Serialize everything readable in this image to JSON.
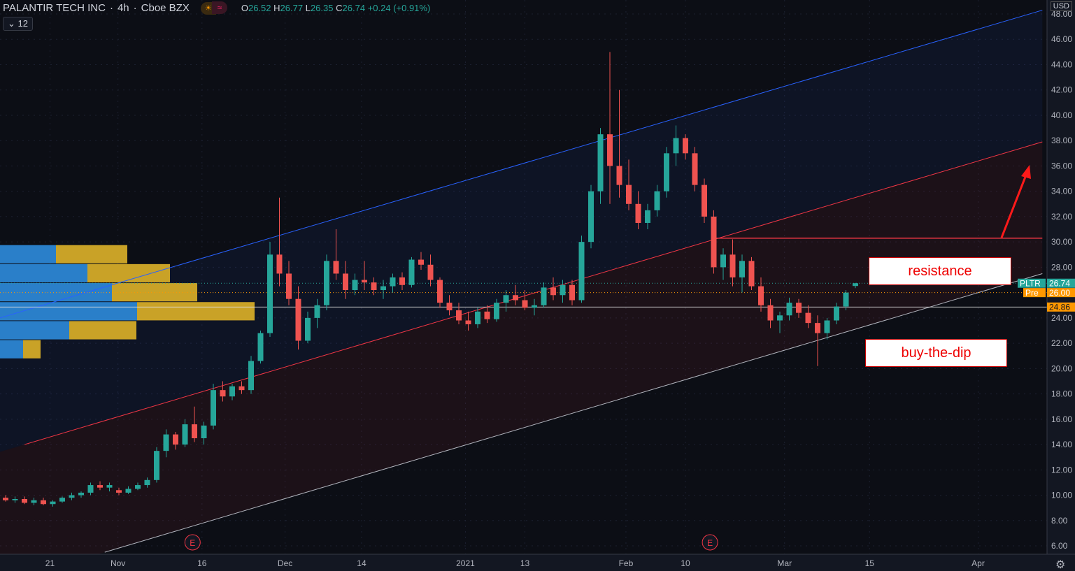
{
  "header": {
    "title": "PALANTIR TECH INC",
    "interval": "4h",
    "exchange": "Cboe BZX",
    "open_label": "O",
    "open": "26.52",
    "high_label": "H",
    "high": "26.77",
    "low_label": "L",
    "low": "26.35",
    "close_label": "C",
    "close": "26.74",
    "change": "+0.24 (+0.91%)",
    "collapse_count": "12",
    "currency": "USD"
  },
  "annotations": {
    "resistance": "resistance",
    "buy_the_dip": "buy-the-dip",
    "earnings_marker": "E"
  },
  "colors": {
    "up": "#26a69a",
    "down": "#ef5350",
    "bg": "#131722",
    "channel_top": "#2962ff",
    "channel_mid": "#f23645",
    "channel_bottom": "#b2b5be",
    "pre": "#ff9800"
  },
  "price_labels": {
    "symbol": "PLTR",
    "last": "26.74",
    "pre_label": "Pre",
    "pre": "26.00",
    "line": "24.86"
  },
  "chart_data": {
    "type": "candlestick",
    "title": "PALANTIR TECH INC · 4h · Cboe BZX",
    "ylim": [
      5,
      48.5
    ],
    "y_ticks": [
      "6.00",
      "8.00",
      "10.00",
      "12.00",
      "14.00",
      "16.00",
      "18.00",
      "20.00",
      "22.00",
      "24.00",
      "26.00",
      "28.00",
      "30.00",
      "32.00",
      "34.00",
      "36.00",
      "38.00",
      "40.00",
      "42.00",
      "44.00",
      "46.00",
      "48.00"
    ],
    "x_ticks": [
      {
        "label": "21",
        "index": 4.7
      },
      {
        "label": "Nov",
        "index": 11.9
      },
      {
        "label": "16",
        "index": 20.8
      },
      {
        "label": "Dec",
        "index": 29.6
      },
      {
        "label": "14",
        "index": 37.7
      },
      {
        "label": "2021",
        "index": 48.7
      },
      {
        "label": "13",
        "index": 55
      },
      {
        "label": "Feb",
        "index": 65.7
      },
      {
        "label": "10",
        "index": 72
      },
      {
        "label": "Mar",
        "index": 82.5
      },
      {
        "label": "15",
        "index": 91.5
      },
      {
        "label": "Apr",
        "index": 103
      }
    ],
    "ohlc": [
      [
        9.8,
        10,
        9.5,
        9.6
      ],
      [
        9.6,
        9.9,
        9.4,
        9.7
      ],
      [
        9.7,
        9.9,
        9.3,
        9.4
      ],
      [
        9.4,
        9.8,
        9.2,
        9.6
      ],
      [
        9.6,
        9.8,
        9.2,
        9.3
      ],
      [
        9.3,
        9.6,
        9.1,
        9.5
      ],
      [
        9.5,
        9.9,
        9.4,
        9.8
      ],
      [
        9.8,
        10.2,
        9.6,
        10
      ],
      [
        10,
        10.3,
        9.8,
        10.2
      ],
      [
        10.2,
        11,
        10,
        10.8
      ],
      [
        10.8,
        11.1,
        10.4,
        10.6
      ],
      [
        10.6,
        11,
        10.3,
        10.8
      ],
      [
        10.4,
        10.6,
        10,
        10.2
      ],
      [
        10.2,
        10.7,
        10.1,
        10.5
      ],
      [
        10.5,
        11,
        10.4,
        10.8
      ],
      [
        10.8,
        11.4,
        10.6,
        11.2
      ],
      [
        11.2,
        13.8,
        11,
        13.5
      ],
      [
        13.5,
        15.2,
        13,
        14.8
      ],
      [
        14.8,
        15,
        13.6,
        14
      ],
      [
        14,
        16,
        13.8,
        15.6
      ],
      [
        15.6,
        17,
        14.2,
        14.5
      ],
      [
        14.5,
        15.8,
        14,
        15.5
      ],
      [
        15.5,
        18.8,
        15.2,
        18.3
      ],
      [
        18.3,
        19,
        17.4,
        17.8
      ],
      [
        17.8,
        18.8,
        17.5,
        18.6
      ],
      [
        18.6,
        19,
        18,
        18.3
      ],
      [
        18.3,
        21,
        18,
        20.6
      ],
      [
        20.6,
        23,
        20.4,
        22.8
      ],
      [
        22.8,
        30,
        22.5,
        29
      ],
      [
        29,
        33.5,
        26.5,
        27.5
      ],
      [
        27.5,
        28.5,
        25,
        25.5
      ],
      [
        25.5,
        26.5,
        21.5,
        22.2
      ],
      [
        22.2,
        24.5,
        22,
        24
      ],
      [
        24,
        25.5,
        23.2,
        25
      ],
      [
        25,
        29,
        24.6,
        28.5
      ],
      [
        28.5,
        31,
        27,
        27.5
      ],
      [
        27.5,
        28.5,
        25.5,
        26.2
      ],
      [
        26.2,
        27.5,
        25.8,
        27
      ],
      [
        27,
        28.5,
        26.2,
        26.8
      ],
      [
        26.8,
        27.2,
        25.8,
        26.2
      ],
      [
        26.2,
        27,
        25.5,
        26.5
      ],
      [
        26.5,
        27.5,
        26,
        27.2
      ],
      [
        27.2,
        27.6,
        26.2,
        26.6
      ],
      [
        26.6,
        28.8,
        26.4,
        28.6
      ],
      [
        28.6,
        29.2,
        27.8,
        28.2
      ],
      [
        28.2,
        29,
        26.5,
        27
      ],
      [
        27,
        27.2,
        24.8,
        25.2
      ],
      [
        25.2,
        25.8,
        24.2,
        24.6
      ],
      [
        24.6,
        25.2,
        23.5,
        23.8
      ],
      [
        23.8,
        24.5,
        23,
        23.5
      ],
      [
        23.5,
        24.8,
        23.2,
        24.5
      ],
      [
        24.5,
        25,
        23.6,
        23.9
      ],
      [
        23.9,
        25.5,
        23.7,
        25.2
      ],
      [
        25.2,
        26.2,
        24.5,
        25.8
      ],
      [
        25.8,
        26.6,
        25,
        25.4
      ],
      [
        25.4,
        26.2,
        24.6,
        24.8
      ],
      [
        24.8,
        25.5,
        24.2,
        25
      ],
      [
        25,
        26.8,
        24.8,
        26.4
      ],
      [
        26.4,
        27.2,
        25.4,
        25.8
      ],
      [
        25.8,
        27,
        25.2,
        26.6
      ],
      [
        26.6,
        27,
        25,
        25.4
      ],
      [
        25.4,
        30.5,
        25.2,
        30
      ],
      [
        30,
        34.5,
        29.5,
        34
      ],
      [
        34,
        39,
        33,
        38.5
      ],
      [
        38.5,
        45,
        33,
        36
      ],
      [
        36,
        42,
        33.5,
        34.5
      ],
      [
        34.5,
        36.5,
        32.5,
        33
      ],
      [
        33,
        34,
        31,
        31.5
      ],
      [
        31.5,
        33,
        31,
        32.5
      ],
      [
        32.5,
        34.5,
        32,
        34
      ],
      [
        34,
        37.5,
        33.5,
        37
      ],
      [
        37,
        39.2,
        36,
        38.2
      ],
      [
        38.2,
        38.5,
        36.5,
        37
      ],
      [
        37,
        37.5,
        34,
        34.5
      ],
      [
        34.5,
        35,
        31.5,
        32
      ],
      [
        32,
        32.5,
        27.5,
        28
      ],
      [
        28,
        29.5,
        27,
        29
      ],
      [
        29,
        30.2,
        26.5,
        27.2
      ],
      [
        27.2,
        29,
        26,
        28.5
      ],
      [
        28.5,
        28.8,
        26.2,
        26.5
      ],
      [
        26.5,
        27.2,
        24.5,
        25
      ],
      [
        25,
        25.5,
        23.2,
        23.8
      ],
      [
        23.8,
        24.5,
        22.8,
        24.2
      ],
      [
        24.2,
        25.6,
        23.8,
        25.2
      ],
      [
        25.2,
        25.5,
        24,
        24.4
      ],
      [
        24.4,
        25,
        23.2,
        23.6
      ],
      [
        23.6,
        24.2,
        20.2,
        22.8
      ],
      [
        22.8,
        24,
        22.3,
        23.8
      ],
      [
        23.8,
        25.2,
        23.5,
        24.9
      ],
      [
        24.9,
        26.2,
        24.6,
        26
      ],
      [
        26.52,
        26.77,
        26.35,
        26.74
      ]
    ],
    "channel_lines": [
      {
        "name": "upper",
        "color": "#2962ff",
        "start": {
          "index": -0.6,
          "price": 24.0
        },
        "end": {
          "index": 109.8,
          "price": 48.3
        }
      },
      {
        "name": "middle",
        "color": "#f23645",
        "start": {
          "index": 2,
          "price": 14.0
        },
        "end": {
          "index": 109.8,
          "price": 37.9
        }
      },
      {
        "name": "lower",
        "color": "#b2b5be",
        "start": {
          "index": 10.5,
          "price": 5.5
        },
        "end": {
          "index": 109.8,
          "price": 27.5
        }
      }
    ],
    "resistance_level": {
      "price": 30.3,
      "from_index": 74.8,
      "to_index": 109.8
    },
    "earnings_indices": [
      19.8,
      74.6
    ],
    "volume_profile": [
      {
        "price": 29,
        "up": 80,
        "down": 102
      },
      {
        "price": 27.5,
        "up": 125,
        "down": 118
      },
      {
        "price": 26,
        "up": 160,
        "down": 122
      },
      {
        "price": 24.5,
        "up": 196,
        "down": 168
      },
      {
        "price": 23,
        "up": 99,
        "down": 96
      },
      {
        "price": 21.5,
        "up": 33,
        "down": 25
      }
    ]
  }
}
